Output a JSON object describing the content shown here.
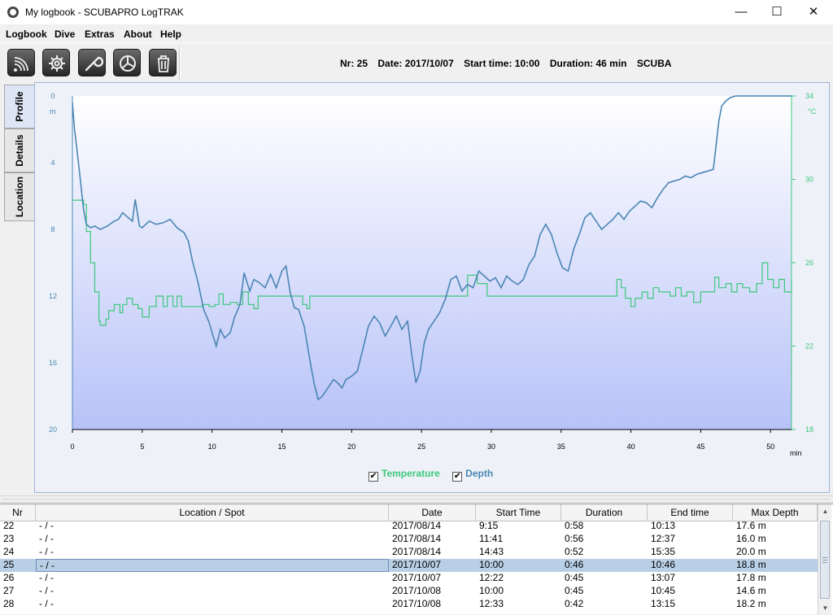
{
  "window": {
    "title": "My logbook - SCUBAPRO LogTRAK",
    "controls": {
      "minimize": "—",
      "maximize": "☐",
      "close": "✕"
    }
  },
  "menu": [
    "Logbook",
    "Dive",
    "Extras",
    "About",
    "Help"
  ],
  "toolbar": {
    "icons": [
      "wireless-connect-icon",
      "settings-gear-icon",
      "wrench-tools-icon",
      "pie-chart-icon",
      "trash-icon"
    ]
  },
  "dive_info": {
    "nr": "Nr: 25",
    "date": "Date: 2017/10/07",
    "start_time": "Start time: 10:00",
    "duration": "Duration: 46 min",
    "mode": "SCUBA"
  },
  "tabs": [
    "Profile",
    "Details",
    "Location"
  ],
  "chart_data": {
    "type": "line",
    "x_ticks": [
      "0",
      "5",
      "10",
      "15",
      "20",
      "25",
      "30",
      "35",
      "40",
      "45",
      "50"
    ],
    "x_unit": "min",
    "depth_ticks": [
      "0",
      "4",
      "8",
      "12",
      "16",
      "20"
    ],
    "depth_unit": "m",
    "temp_ticks": [
      "34",
      "30",
      "26",
      "22",
      "18"
    ],
    "temp_unit": "°C",
    "xlim": [
      0,
      51.5
    ],
    "depth_lim": [
      0,
      20
    ],
    "temp_lim": [
      18,
      34
    ],
    "colors": {
      "depth": "#4a86b4",
      "temperature": "#3cc87c"
    },
    "legend": {
      "temperature": "Temperature",
      "depth": "Depth",
      "check": "✔"
    },
    "depth": {
      "x": [
        0,
        0.15,
        0.3,
        0.5,
        0.8,
        1.0,
        1.3,
        1.6,
        2.0,
        2.5,
        3.0,
        3.3,
        3.6,
        4.0,
        4.3,
        4.5,
        4.8,
        5.0,
        5.5,
        6.0,
        6.5,
        7.0,
        7.5,
        8.0,
        8.3,
        8.6,
        9.0,
        9.4,
        9.8,
        10.0,
        10.3,
        10.6,
        10.9,
        11.3,
        11.6,
        12.0,
        12.3,
        12.7,
        13.0,
        13.4,
        13.8,
        14.2,
        14.6,
        15.0,
        15.3,
        15.6,
        15.9,
        16.2,
        16.6,
        17.0,
        17.3,
        17.6,
        17.9,
        18.3,
        18.7,
        19.0,
        19.3,
        19.6,
        20.0,
        20.4,
        20.8,
        21.2,
        21.6,
        22.0,
        22.4,
        22.8,
        23.2,
        23.6,
        24.0,
        24.3,
        24.6,
        24.9,
        25.2,
        25.5,
        25.9,
        26.3,
        26.7,
        27.1,
        27.5,
        27.9,
        28.3,
        28.7,
        29.1,
        29.5,
        29.9,
        30.3,
        30.7,
        31.1,
        31.5,
        31.9,
        32.3,
        32.7,
        33.1,
        33.5,
        33.9,
        34.3,
        34.7,
        35.1,
        35.5,
        35.9,
        36.3,
        36.7,
        37.1,
        37.5,
        37.9,
        38.3,
        38.7,
        39.1,
        39.5,
        39.9,
        40.3,
        40.7,
        41.1,
        41.5,
        41.9,
        42.3,
        42.7,
        43.1,
        43.5,
        43.9,
        44.3,
        44.7,
        45.1,
        45.5,
        45.9,
        46.3,
        46.5,
        46.8,
        47.1,
        47.5,
        48.0,
        48.5,
        49.0,
        49.5,
        50.0,
        50.5,
        51.0,
        51.5
      ],
      "y": [
        0.4,
        2.0,
        3.0,
        4.5,
        6.8,
        7.7,
        7.9,
        7.8,
        8.0,
        7.8,
        7.5,
        7.4,
        7.0,
        7.3,
        7.5,
        6.2,
        7.8,
        7.9,
        7.5,
        7.7,
        7.6,
        7.4,
        7.9,
        8.2,
        8.7,
        9.9,
        11.2,
        12.8,
        13.6,
        14.2,
        15.0,
        14.0,
        14.5,
        14.2,
        13.3,
        12.5,
        10.6,
        11.7,
        11.0,
        11.2,
        11.5,
        10.7,
        11.5,
        10.5,
        10.2,
        11.8,
        12.7,
        12.8,
        13.8,
        15.8,
        17.2,
        18.2,
        18.0,
        17.5,
        17.0,
        17.2,
        17.5,
        17.0,
        16.8,
        16.5,
        15.2,
        13.8,
        13.2,
        13.6,
        14.4,
        13.8,
        13.2,
        14.0,
        13.5,
        15.5,
        17.2,
        16.5,
        14.8,
        14.0,
        13.5,
        13.0,
        12.2,
        11.0,
        10.8,
        11.7,
        11.3,
        11.5,
        10.5,
        10.8,
        11.1,
        10.9,
        11.5,
        10.8,
        11.1,
        11.3,
        11.0,
        10.1,
        9.6,
        8.3,
        7.7,
        8.3,
        9.4,
        10.3,
        10.5,
        9.2,
        8.3,
        7.3,
        7.0,
        7.5,
        8.0,
        7.7,
        7.4,
        7.0,
        7.4,
        6.9,
        6.6,
        6.3,
        6.4,
        6.7,
        6.1,
        5.6,
        5.2,
        5.1,
        5.0,
        4.8,
        4.9,
        4.7,
        4.6,
        4.5,
        4.4,
        1.5,
        0.6,
        0.3,
        0.1,
        0.0,
        0.0,
        0.0,
        0.0,
        0.0,
        0.0,
        0.0,
        0.0,
        0.0
      ]
    },
    "temperature": {
      "x": [
        0,
        0.4,
        0.8,
        1.0,
        1.3,
        1.6,
        1.9,
        2.0,
        2.4,
        2.6,
        3.0,
        3.4,
        3.6,
        3.9,
        4.3,
        4.7,
        5.0,
        5.5,
        6.0,
        6.5,
        6.8,
        7.2,
        7.5,
        7.8,
        8.3,
        8.8,
        9.3,
        9.8,
        10.2,
        10.5,
        10.8,
        11.3,
        11.8,
        12.2,
        12.6,
        13.0,
        13.3,
        14.0,
        15.0,
        16.0,
        16.5,
        16.8,
        17.0,
        18.0,
        20.0,
        25.0,
        27.8,
        28.3,
        29.0,
        29.7,
        30.0,
        32.0,
        35.0,
        38.0,
        38.7,
        39.0,
        39.3,
        39.6,
        40.0,
        40.3,
        40.8,
        41.2,
        41.6,
        42.0,
        42.8,
        43.2,
        43.6,
        44.0,
        44.5,
        45.0,
        45.7,
        46.0,
        46.3,
        46.8,
        47.2,
        47.6,
        48.0,
        48.5,
        49.0,
        49.4,
        49.8,
        50.2,
        50.6,
        51.0,
        51.5
      ],
      "y": [
        29.0,
        29.0,
        28.8,
        27.5,
        26.0,
        24.6,
        23.2,
        23.0,
        23.3,
        23.7,
        24.0,
        23.6,
        24.0,
        24.3,
        24.0,
        23.8,
        23.4,
        23.9,
        24.4,
        23.9,
        24.4,
        23.9,
        24.4,
        23.9,
        23.9,
        23.9,
        24.0,
        23.9,
        24.0,
        24.5,
        24.0,
        24.1,
        24.0,
        24.6,
        24.0,
        23.8,
        24.4,
        24.4,
        24.4,
        24.4,
        24.0,
        23.8,
        24.4,
        24.4,
        24.4,
        24.4,
        24.4,
        25.4,
        25.0,
        24.4,
        24.4,
        24.4,
        24.4,
        24.4,
        24.4,
        25.2,
        24.8,
        24.3,
        23.9,
        24.3,
        24.6,
        24.3,
        24.8,
        24.6,
        24.4,
        24.8,
        24.4,
        24.6,
        24.1,
        24.6,
        24.6,
        25.3,
        24.8,
        25.0,
        24.6,
        25.0,
        24.8,
        24.6,
        25.0,
        26.0,
        25.2,
        24.8,
        25.2,
        24.6,
        25.2
      ]
    }
  },
  "table": {
    "headers": [
      "Nr",
      "Location / Spot",
      "Date",
      "Start Time",
      "Duration",
      "End time",
      "Max Depth"
    ],
    "rows": [
      {
        "nr": "22",
        "loc": "- / -",
        "date": "2017/08/14",
        "start": "9:15",
        "dur": "0:58",
        "end": "10:13",
        "max": "17.6 m"
      },
      {
        "nr": "23",
        "loc": "- / -",
        "date": "2017/08/14",
        "start": "11:41",
        "dur": "0:56",
        "end": "12:37",
        "max": "16.0 m"
      },
      {
        "nr": "24",
        "loc": "- / -",
        "date": "2017/08/14",
        "start": "14:43",
        "dur": "0:52",
        "end": "15:35",
        "max": "20.0 m"
      },
      {
        "nr": "25",
        "loc": "- / -",
        "date": "2017/10/07",
        "start": "10:00",
        "dur": "0:46",
        "end": "10:46",
        "max": "18.8 m"
      },
      {
        "nr": "26",
        "loc": "- / -",
        "date": "2017/10/07",
        "start": "12:22",
        "dur": "0:45",
        "end": "13:07",
        "max": "17.8 m"
      },
      {
        "nr": "27",
        "loc": "- / -",
        "date": "2017/10/08",
        "start": "10:00",
        "dur": "0:45",
        "end": "10:45",
        "max": "14.6 m"
      },
      {
        "nr": "28",
        "loc": "- / -",
        "date": "2017/10/08",
        "start": "12:33",
        "dur": "0:42",
        "end": "13:15",
        "max": "18.2 m"
      }
    ],
    "selected_row": 3
  },
  "scrollbar": {
    "up": "▲",
    "down": "▼"
  }
}
